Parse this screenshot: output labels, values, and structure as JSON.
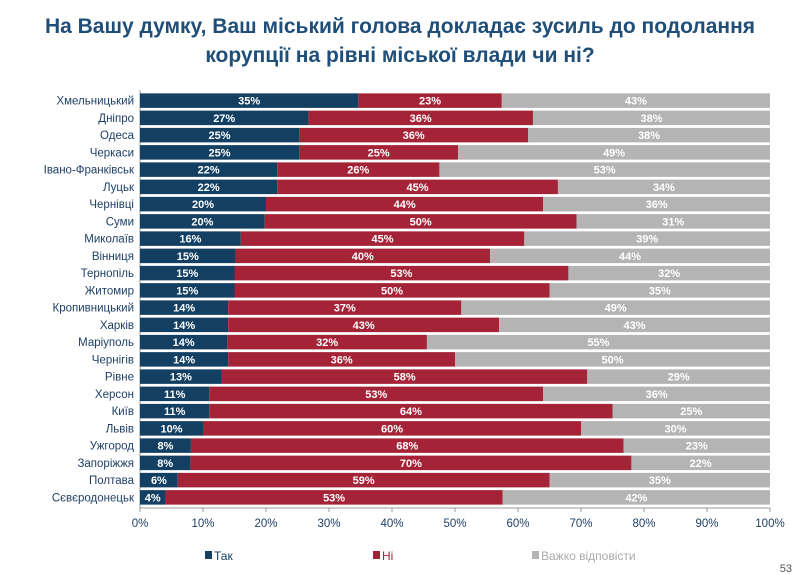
{
  "title_lines": [
    "На Вашу думку, Ваш міський голова докладає зусиль до подолання",
    "корупції на рівні міської влади чи ні?"
  ],
  "page_number": "53",
  "chart_data": {
    "type": "bar",
    "orientation": "horizontal",
    "stacked": true,
    "title": "На Вашу думку, Ваш міський голова докладає зусиль до подолання корупції на рівні міської влади чи ні?",
    "categories": [
      "Хмельницький",
      "Дніпро",
      "Одеса",
      "Черкаси",
      "Івано-Франківськ",
      "Луцьк",
      "Чернівці",
      "Суми",
      "Миколаїв",
      "Вінниця",
      "Тернопіль",
      "Житомир",
      "Кропивницький",
      "Харків",
      "Маріуполь",
      "Чернігів",
      "Рівне",
      "Херсон",
      "Київ",
      "Львів",
      "Ужгород",
      "Запоріжжя",
      "Полтава",
      "Сєвєродонецьк"
    ],
    "series": [
      {
        "name": "Так",
        "color": "#123f62",
        "values": [
          35,
          27,
          25,
          25,
          22,
          22,
          20,
          20,
          16,
          15,
          15,
          15,
          14,
          14,
          14,
          14,
          13,
          11,
          11,
          10,
          8,
          8,
          6,
          4
        ]
      },
      {
        "name": "Ні",
        "color": "#a52336",
        "values": [
          23,
          36,
          36,
          25,
          26,
          45,
          44,
          50,
          45,
          40,
          53,
          50,
          37,
          43,
          32,
          36,
          58,
          53,
          64,
          60,
          68,
          70,
          59,
          53
        ]
      },
      {
        "name": "Важко відповісти",
        "color": "#b4b4b4",
        "values": [
          43,
          38,
          38,
          49,
          53,
          34,
          36,
          31,
          39,
          44,
          32,
          35,
          49,
          43,
          55,
          50,
          29,
          36,
          25,
          30,
          23,
          22,
          35,
          42
        ]
      }
    ],
    "xlim": [
      0,
      100
    ],
    "x_ticks": [
      "0%",
      "10%",
      "20%",
      "30%",
      "40%",
      "50%",
      "60%",
      "70%",
      "80%",
      "90%",
      "100%"
    ],
    "value_format": "%",
    "legend_position": "bottom",
    "grid": false
  }
}
